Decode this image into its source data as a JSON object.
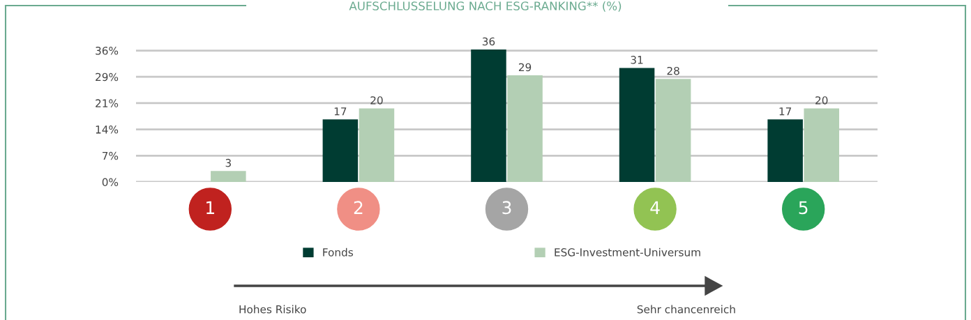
{
  "chart_data": {
    "type": "bar",
    "title": "AUFSCHLUSSELUNG NACH ESG-RANKING** (%)",
    "categories": [
      "1",
      "2",
      "3",
      "4",
      "5"
    ],
    "series": [
      {
        "name": "Fonds",
        "color": "#003c32",
        "values": [
          null,
          17,
          36,
          31,
          17
        ]
      },
      {
        "name": "ESG-Investment-Universum",
        "color": "#b3cfb4",
        "values": [
          3,
          20,
          29,
          28,
          20
        ]
      }
    ],
    "ylim": [
      0,
      36
    ],
    "yticks": [
      {
        "value": 0,
        "label": "0%"
      },
      {
        "value": 7.14,
        "label": "7%"
      },
      {
        "value": 14.29,
        "label": "14%"
      },
      {
        "value": 21.43,
        "label": "21%"
      },
      {
        "value": 28.57,
        "label": "29%"
      },
      {
        "value": 35.71,
        "label": "36%"
      }
    ],
    "grid": "y",
    "legend": "bottom",
    "data_labels": true,
    "annotations": [
      "Hohes Risiko",
      "Sehr chancenreich"
    ]
  }
}
